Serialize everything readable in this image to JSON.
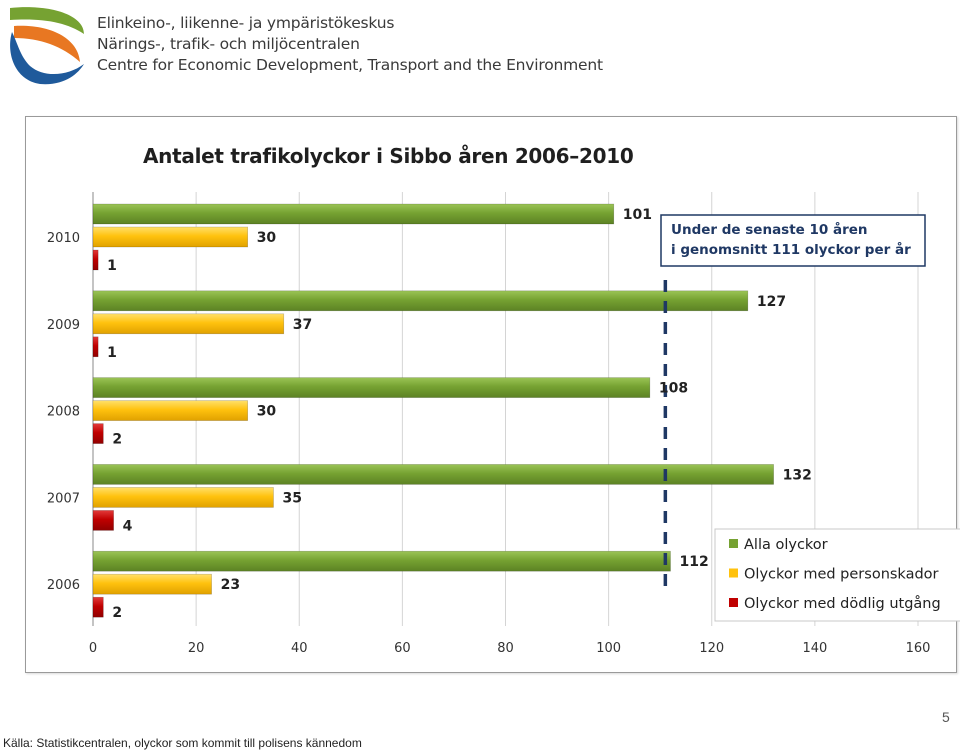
{
  "header": {
    "logo_icon": "ely-centre-logo-icon",
    "org_lines": [
      "Elinkeino-, liikenne- ja ympäristökeskus",
      "Närings-, trafik- och miljöcentralen",
      "Centre for Economic Development, Transport and the Environment"
    ]
  },
  "chart_data": {
    "type": "bar",
    "orientation": "horizontal",
    "title": "Antalet trafikolyckor i Sibbo åren 2006–2010",
    "categories": [
      "2006",
      "2007",
      "2008",
      "2009",
      "2010"
    ],
    "series": [
      {
        "name": "Alla olyckor",
        "color": "#76a232",
        "values": [
          112,
          132,
          108,
          127,
          101
        ]
      },
      {
        "name": "Olyckor med personskador",
        "color": "#ffc20e",
        "values": [
          23,
          35,
          30,
          37,
          30
        ]
      },
      {
        "name": "Olyckor med dödlig utgång",
        "color": "#c00000",
        "values": [
          2,
          4,
          2,
          1,
          1
        ]
      }
    ],
    "xlim": [
      0,
      160
    ],
    "xticks": [
      "0",
      "20",
      "40",
      "60",
      "80",
      "100",
      "120",
      "140",
      "160"
    ],
    "grid": "vertical",
    "legend": "bottom-right",
    "reference_line": {
      "value": 111,
      "style": "dashed",
      "color": "#1f3864"
    },
    "annotation": [
      "Under de senaste 10 åren",
      "i genomsnitt 111 olyckor per år"
    ]
  },
  "footer": {
    "source": "Källa: Statistikcentralen, olyckor som kommit till polisens kännedom",
    "page_number": "5"
  }
}
